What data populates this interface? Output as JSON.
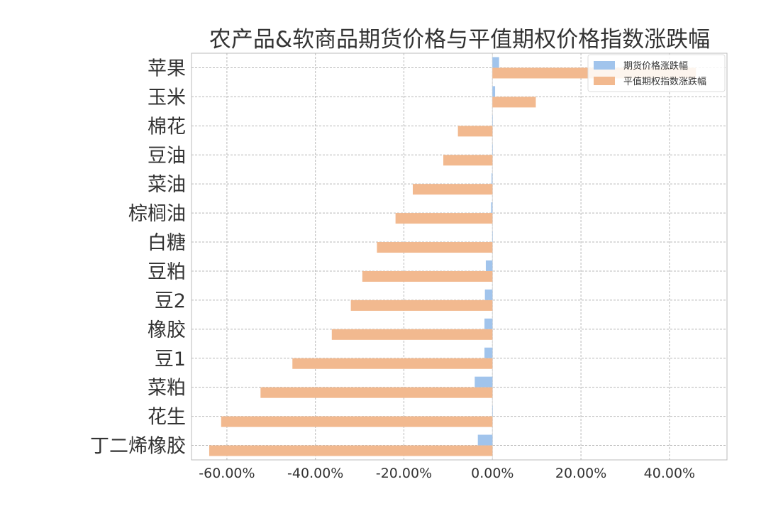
{
  "chart_data": {
    "type": "bar",
    "orientation": "horizontal",
    "title": "农产品&软商品期货价格与平值期权价格指数涨跌幅",
    "xlabel": "",
    "ylabel": "",
    "xlim": [
      -0.68,
      0.53
    ],
    "x_ticks": [
      -0.6,
      -0.4,
      -0.2,
      0.0,
      0.2,
      0.4
    ],
    "x_tick_labels": [
      "-60.00%",
      "-40.00%",
      "-20.00%",
      "0.00%",
      "20.00%",
      "40.00%"
    ],
    "grid": true,
    "legend_position": "top-right",
    "categories": [
      "苹果",
      "玉米",
      "棉花",
      "豆油",
      "菜油",
      "棕榈油",
      "白糖",
      "豆粕",
      "豆2",
      "橡胶",
      "豆1",
      "菜粕",
      "花生",
      "丁二烯橡胶"
    ],
    "series": [
      {
        "name": "期货价格涨跌幅",
        "color": "#a1c4ec",
        "values": [
          0.015,
          0.006,
          0.0,
          0.0,
          -0.002,
          -0.003,
          0.0,
          -0.015,
          -0.017,
          -0.018,
          -0.018,
          -0.04,
          0.0,
          -0.033
        ]
      },
      {
        "name": "平值期权指数涨跌幅",
        "color": "#f2b98f",
        "values": [
          0.46,
          0.098,
          -0.078,
          -0.111,
          -0.18,
          -0.219,
          -0.261,
          -0.294,
          -0.32,
          -0.363,
          -0.452,
          -0.524,
          -0.613,
          -0.64
        ]
      }
    ]
  }
}
